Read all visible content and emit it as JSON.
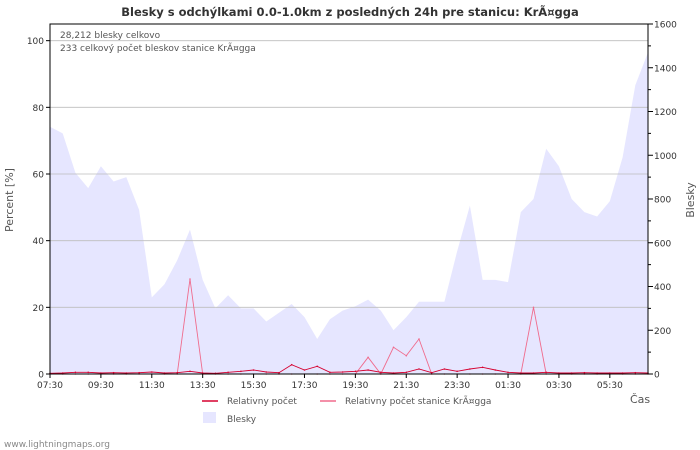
{
  "chart_data": {
    "type": "area+line",
    "title": "Blesky s odchýlkami 0.0-1.0km z posledných 24h pre stanicu: KrÃ¤gga",
    "ylabel_left": "Percent   [%]",
    "ylabel_right": "Blesky",
    "xlabel": "Čas",
    "ylim_left": [
      0,
      105
    ],
    "ylim_right": [
      0,
      1600
    ],
    "yticks_left": [
      "0",
      "20",
      "40",
      "60",
      "80",
      "100"
    ],
    "yticks_right": [
      "0",
      "200",
      "400",
      "600",
      "800",
      "1000",
      "1200",
      "1400",
      "1600"
    ],
    "xticks": [
      "07:30",
      "09:30",
      "11:30",
      "13:30",
      "15:30",
      "17:30",
      "19:30",
      "21:30",
      "23:30",
      "01:30",
      "03:30",
      "05:30"
    ],
    "info_lines": [
      "28,212 blesky celkovo",
      "233 celkový počet bleskov stanice KrÃ¤gga"
    ],
    "watermark": "www.lightningmaps.org",
    "series": [
      {
        "name": "Blesky",
        "axis": "right",
        "color": "#e6e6ff",
        "values": [
          1130,
          1100,
          920,
          850,
          950,
          880,
          900,
          750,
          350,
          410,
          520,
          660,
          430,
          300,
          360,
          300,
          300,
          240,
          280,
          320,
          260,
          160,
          250,
          290,
          310,
          340,
          290,
          200,
          260,
          330,
          330,
          330,
          560,
          770,
          430,
          430,
          420,
          740,
          800,
          1030,
          950,
          800,
          740,
          720,
          790,
          990,
          1320,
          1470
        ]
      },
      {
        "name": "Relativny počet stanice KrÃ¤gga",
        "axis": "left",
        "color": "#f06b8c",
        "values": [
          0,
          0,
          0,
          0,
          0,
          0,
          0,
          0,
          0,
          0,
          0,
          28.5,
          0,
          0,
          0,
          0,
          0,
          0,
          0,
          0,
          0,
          0,
          0,
          0,
          0,
          5,
          0,
          8,
          5.5,
          10.5,
          0,
          0,
          0,
          0,
          0,
          0,
          0,
          0,
          20,
          0,
          0,
          0,
          0,
          0,
          0,
          0,
          0,
          0
        ]
      },
      {
        "name": "Relativny počet",
        "axis": "left",
        "color": "#d6002f",
        "values": [
          0.2,
          0.3,
          0.5,
          0.5,
          0.3,
          0.4,
          0.3,
          0.4,
          0.6,
          0.3,
          0.4,
          0.8,
          0.3,
          0.2,
          0.5,
          0.8,
          1.2,
          0.6,
          0.4,
          2.8,
          1.2,
          2.3,
          0.5,
          0.6,
          0.8,
          1.2,
          0.5,
          0.3,
          0.5,
          1.5,
          0.4,
          1.5,
          0.8,
          1.5,
          2,
          1.2,
          0.5,
          0.3,
          0.3,
          0.5,
          0.3,
          0.3,
          0.4,
          0.3,
          0.3,
          0.3,
          0.4,
          0.3
        ]
      }
    ],
    "legend": [
      {
        "label": "Relativny počet",
        "kind": "line",
        "color": "#d6002f"
      },
      {
        "label": "Relativny počet stanice KrÃ¤gga",
        "kind": "line",
        "color": "#f06b8c"
      },
      {
        "label": "Blesky",
        "kind": "area",
        "color": "#e6e6ff"
      }
    ]
  }
}
